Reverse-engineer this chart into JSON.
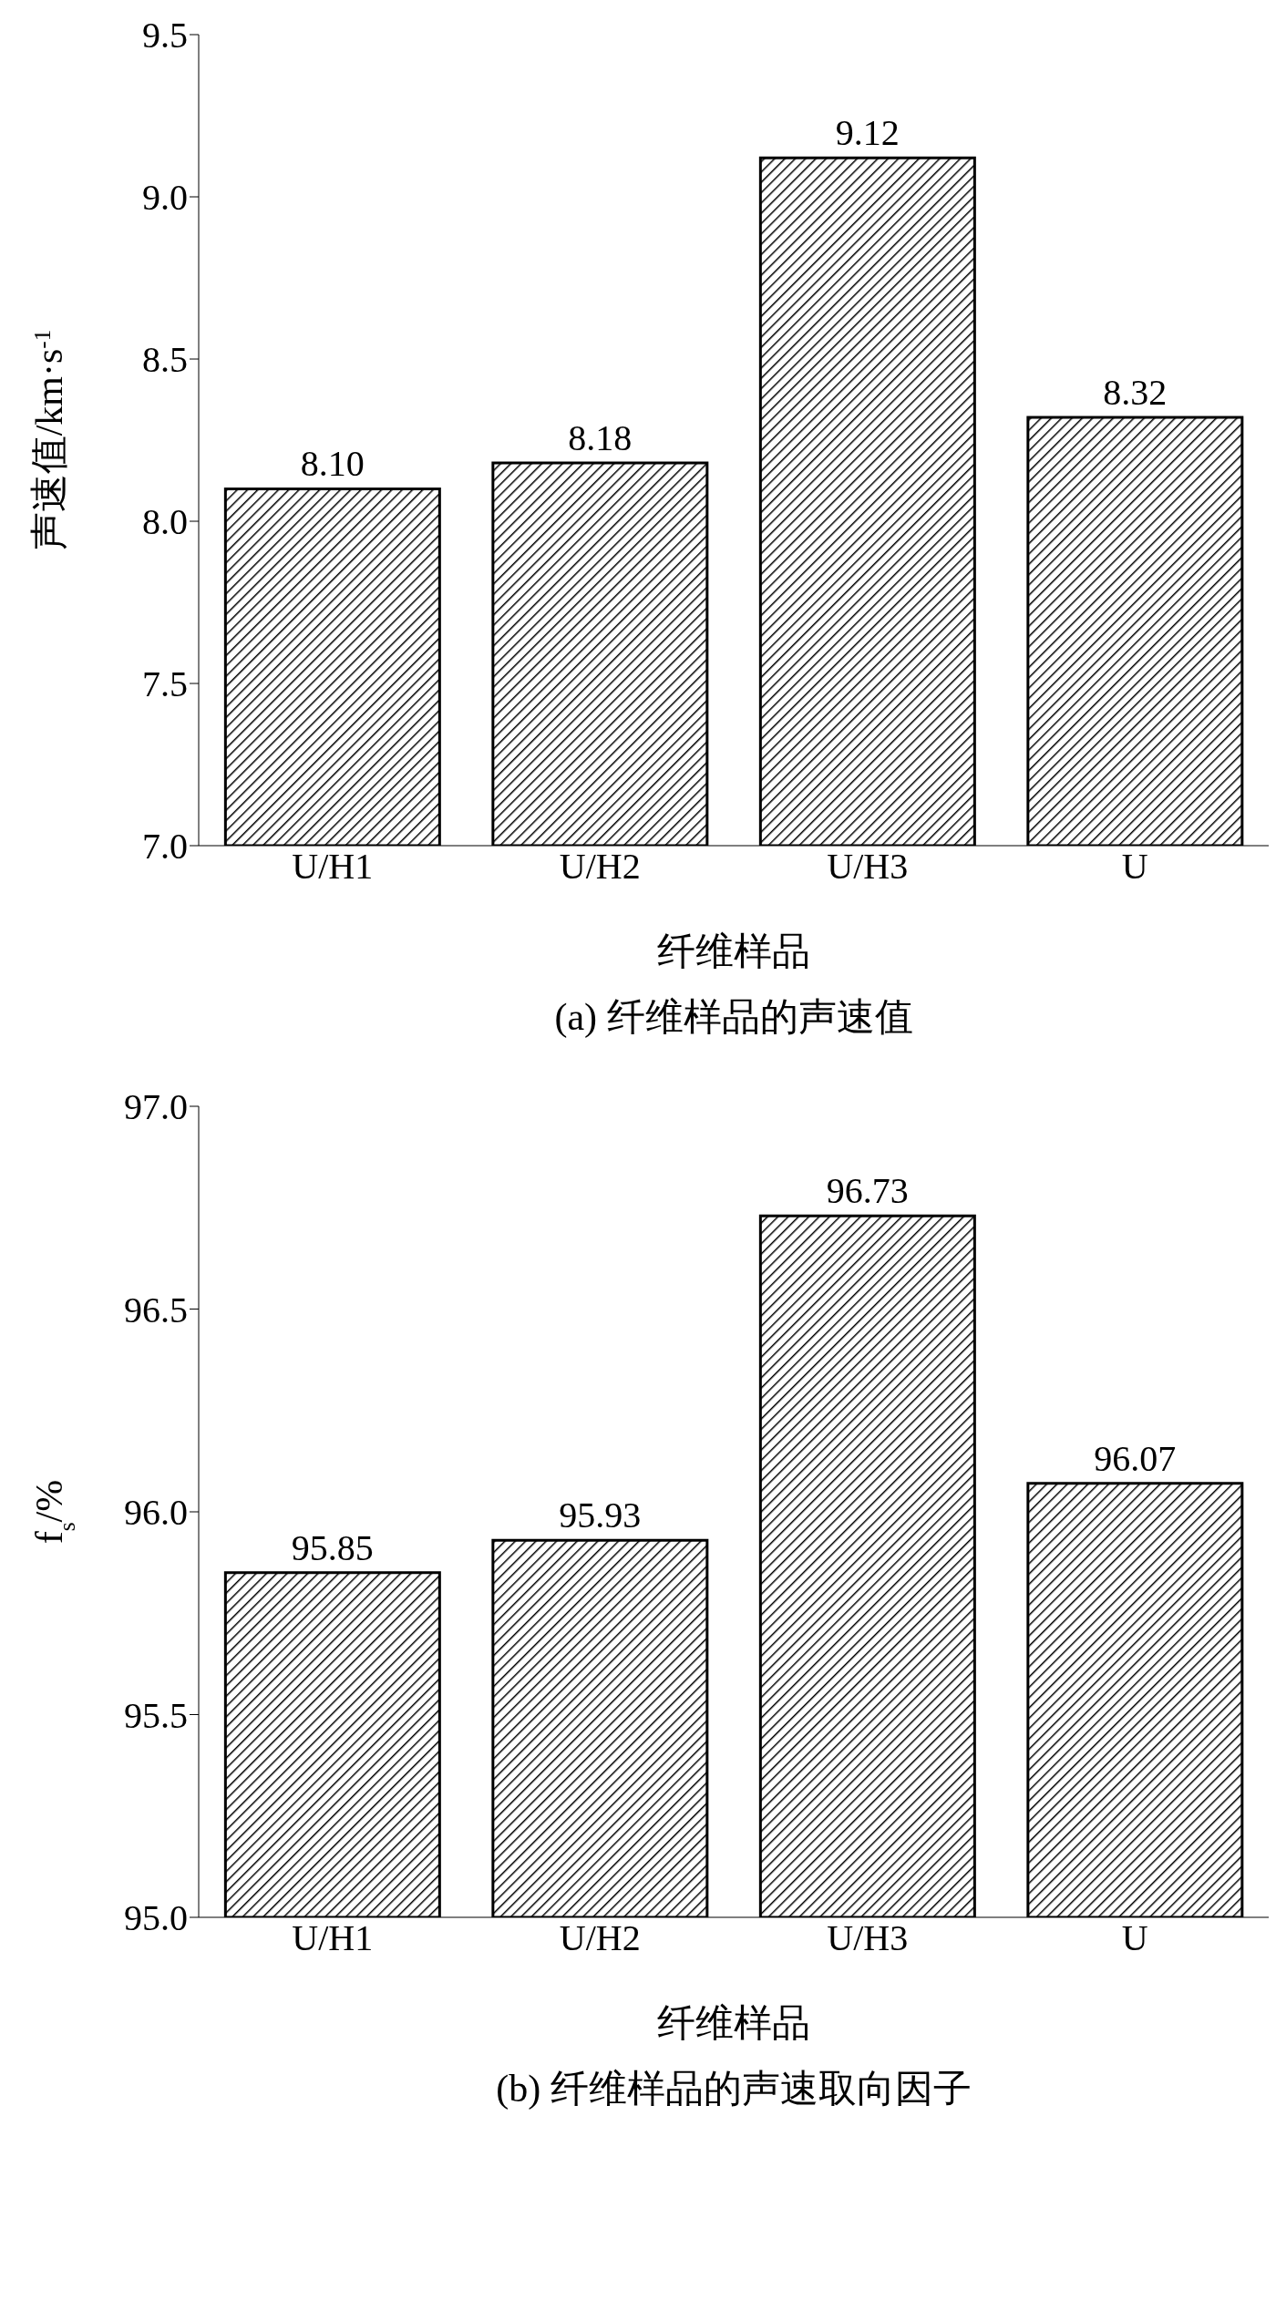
{
  "chart_data": [
    {
      "type": "bar",
      "title": "(a) 纤维样品的声速值",
      "xlabel": "纤维样品",
      "ylabel": "声速值/km·s$^{-1}$",
      "categories": [
        "U/H1",
        "U/H2",
        "U/H3",
        "U"
      ],
      "values": [
        8.1,
        8.18,
        9.12,
        8.32
      ],
      "color": "#000000",
      "ylim": [
        7.0,
        9.5
      ],
      "yticks": [
        {
          "value": 7.0,
          "label": "7.0"
        },
        {
          "value": 7.5,
          "label": "7.5"
        },
        {
          "value": 8.0,
          "label": "8.0"
        },
        {
          "value": 8.5,
          "label": "8.5"
        },
        {
          "value": 9.0,
          "label": "9.0"
        },
        {
          "value": 9.5,
          "label": "9.5"
        }
      ],
      "value_labels": [
        "8.10",
        "8.18",
        "9.12",
        "8.32"
      ],
      "grid": false,
      "legend": false
    },
    {
      "type": "bar",
      "title": "(b) 纤维样品的声速取向因子",
      "xlabel": "纤维样品",
      "ylabel": "f$_{s}$/%",
      "categories": [
        "U/H1",
        "U/H2",
        "U/H3",
        "U"
      ],
      "values": [
        95.85,
        95.93,
        96.73,
        96.07
      ],
      "color": "#000000",
      "ylim": [
        95.0,
        97.0
      ],
      "yticks": [
        {
          "value": 95.0,
          "label": "95.0"
        },
        {
          "value": 95.5,
          "label": "95.5"
        },
        {
          "value": 96.0,
          "label": "96.0"
        },
        {
          "value": 96.5,
          "label": "96.5"
        },
        {
          "value": 97.0,
          "label": "97.0"
        }
      ],
      "data_labels": true,
      "grid": false,
      "legend": false
    }
  ]
}
